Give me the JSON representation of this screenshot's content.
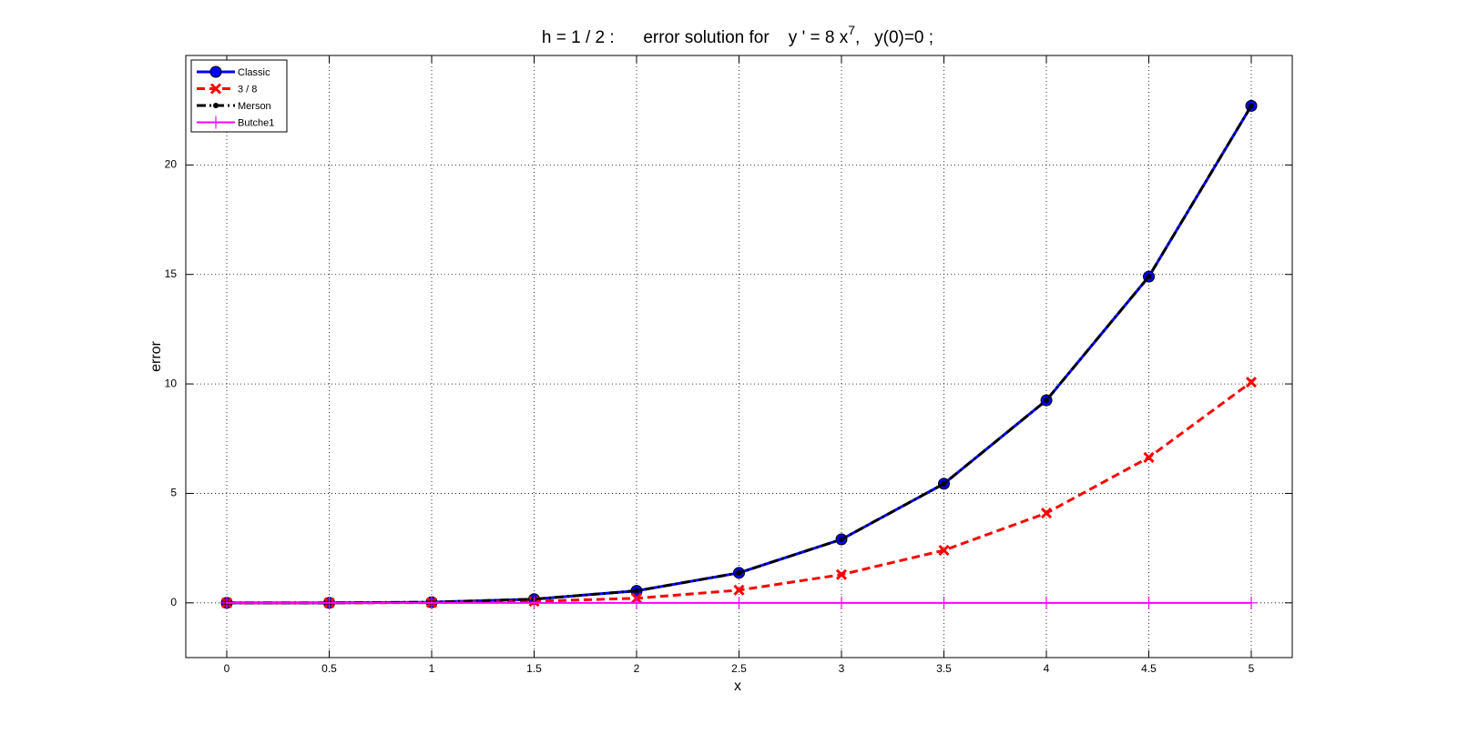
{
  "chart_data": {
    "type": "line",
    "title": [
      "h = 1 / 2 :      error solution for    y ' = 8 x",
      "7",
      ",   y(0)=0 ;"
    ],
    "xlabel": "x",
    "ylabel": "error",
    "x": [
      0,
      0.5,
      1,
      1.5,
      2,
      2.5,
      3,
      3.5,
      4,
      4.5,
      5
    ],
    "xlim": [
      -0.2,
      5.2
    ],
    "xticks": [
      0,
      0.5,
      1,
      1.5,
      2,
      2.5,
      3,
      3.5,
      4,
      4.5,
      5
    ],
    "ylim": [
      -2.5,
      25
    ],
    "yticks": [
      0,
      5,
      10,
      15,
      20
    ],
    "grid": true,
    "legend": "upper-left",
    "series": [
      {
        "name": "Classic",
        "color": "#0000ff",
        "marker": "circle",
        "dash": "solid",
        "values": [
          0,
          0,
          0.03,
          0.17,
          0.55,
          1.37,
          2.9,
          5.44,
          9.25,
          14.9,
          22.7
        ]
      },
      {
        "name": " 3 / 8",
        "color": "#ff0000",
        "marker": "x",
        "dash": "dashed",
        "values": [
          0,
          0,
          0.01,
          0.07,
          0.21,
          0.58,
          1.29,
          2.4,
          4.1,
          6.64,
          10.08
        ]
      },
      {
        "name": "Merson",
        "color": "#000000",
        "marker": "dot",
        "dash": "dashdot",
        "values": [
          0,
          0,
          0.03,
          0.17,
          0.55,
          1.37,
          2.9,
          5.44,
          9.25,
          14.9,
          22.7
        ]
      },
      {
        "name": "Butche1",
        "color": "#ff00ff",
        "marker": "plus",
        "dash": "solid",
        "values": [
          0,
          0,
          0,
          0,
          0,
          0,
          0,
          0,
          0,
          0,
          0
        ]
      }
    ]
  }
}
